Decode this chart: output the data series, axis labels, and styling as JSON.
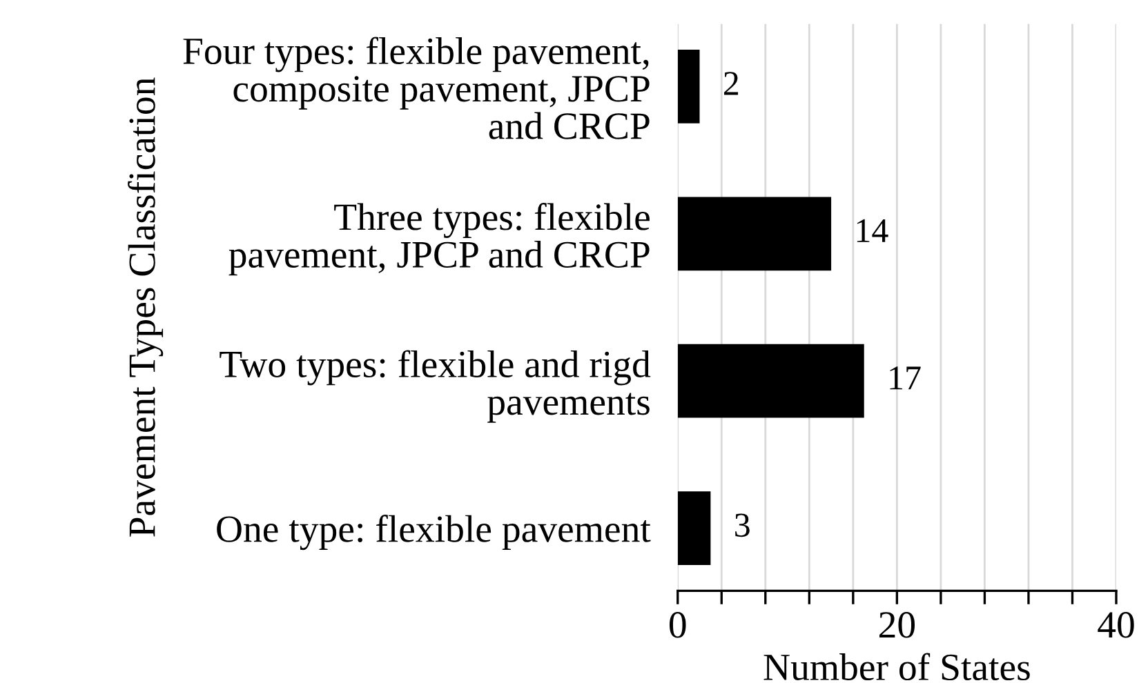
{
  "chart_data": {
    "type": "bar",
    "orientation": "horizontal",
    "xlabel": "Number of States",
    "ylabel": "Pavement Types Classfication",
    "categories": [
      "Four types: flexible pavement,\ncomposite pavement, JPCP\nand CRCP",
      "Three types: flexible\npavement, JPCP and CRCP",
      "Two types: flexible and rigd\npavements",
      "One type: flexible pavement"
    ],
    "values": [
      2,
      14,
      17,
      3
    ],
    "color": "#000000",
    "data_labels": true,
    "xlim": [
      0,
      40
    ],
    "xticks": [
      0,
      {
        "value": 4,
        "label": null
      },
      {
        "value": 8,
        "label": null
      },
      {
        "value": 12,
        "label": null
      },
      {
        "value": 16,
        "label": null
      },
      20,
      {
        "value": 24,
        "label": null
      },
      {
        "value": 28,
        "label": null
      },
      {
        "value": 32,
        "label": null
      },
      {
        "value": 36,
        "label": null
      },
      40
    ],
    "grid": "x"
  }
}
